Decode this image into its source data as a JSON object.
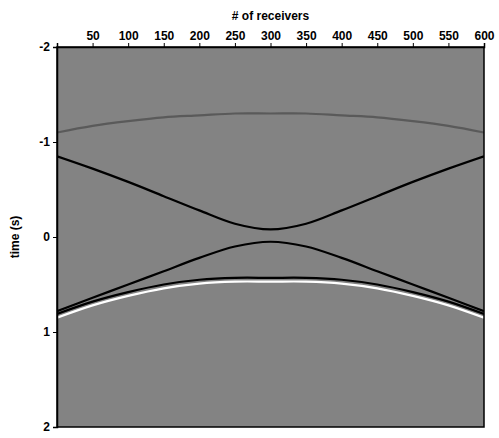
{
  "chart_data": {
    "type": "line",
    "xlabel": "# of receivers",
    "ylabel": "time (s)",
    "x": [
      0,
      50,
      100,
      150,
      200,
      250,
      300,
      350,
      400,
      450,
      500,
      550,
      600
    ],
    "series": [
      {
        "color": "#5a5a5a",
        "values": [
          -1.1,
          -1.17,
          -1.22,
          -1.26,
          -1.28,
          -1.3,
          -1.3,
          -1.3,
          -1.28,
          -1.26,
          -1.22,
          -1.17,
          -1.1
        ]
      },
      {
        "color": "#000000",
        "values": [
          -0.85,
          -0.72,
          -0.58,
          -0.43,
          -0.28,
          -0.14,
          -0.08,
          -0.14,
          -0.28,
          -0.43,
          -0.58,
          -0.72,
          -0.85
        ]
      },
      {
        "color": "#000000",
        "values": [
          0.78,
          0.64,
          0.5,
          0.36,
          0.22,
          0.1,
          0.05,
          0.1,
          0.22,
          0.36,
          0.5,
          0.64,
          0.78
        ]
      },
      {
        "color": "#000000",
        "values": [
          0.81,
          0.68,
          0.58,
          0.5,
          0.45,
          0.43,
          0.43,
          0.43,
          0.45,
          0.5,
          0.58,
          0.68,
          0.81
        ]
      },
      {
        "color": "#ffffff",
        "values": [
          0.85,
          0.72,
          0.62,
          0.54,
          0.49,
          0.47,
          0.47,
          0.47,
          0.49,
          0.54,
          0.62,
          0.72,
          0.85
        ]
      }
    ],
    "xlim": [
      0,
      600
    ],
    "xticks": [
      50,
      100,
      150,
      200,
      250,
      300,
      350,
      400,
      450,
      500,
      550,
      600
    ],
    "ylim": [
      -2,
      2
    ],
    "yticks": [
      -2,
      -1,
      0,
      1,
      2
    ]
  }
}
